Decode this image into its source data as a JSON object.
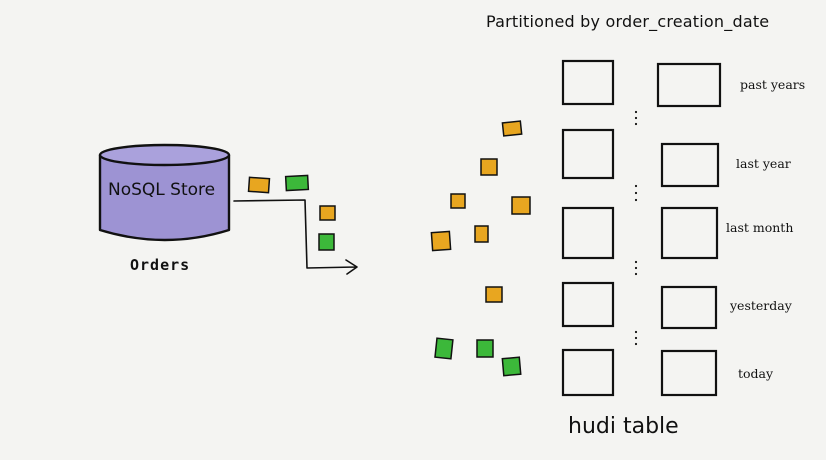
{
  "title": "Partitioned by order_creation_date",
  "store": {
    "label": "NoSQL Store",
    "fill": "#9d93d3"
  },
  "source_label": "Orders",
  "partitions": [
    "past years",
    "last year",
    "last month",
    "yesterday",
    "today"
  ],
  "table_label": "hudi table",
  "colors": {
    "orange": "#e8a620",
    "green": "#3cb83a",
    "ink": "#111111"
  }
}
